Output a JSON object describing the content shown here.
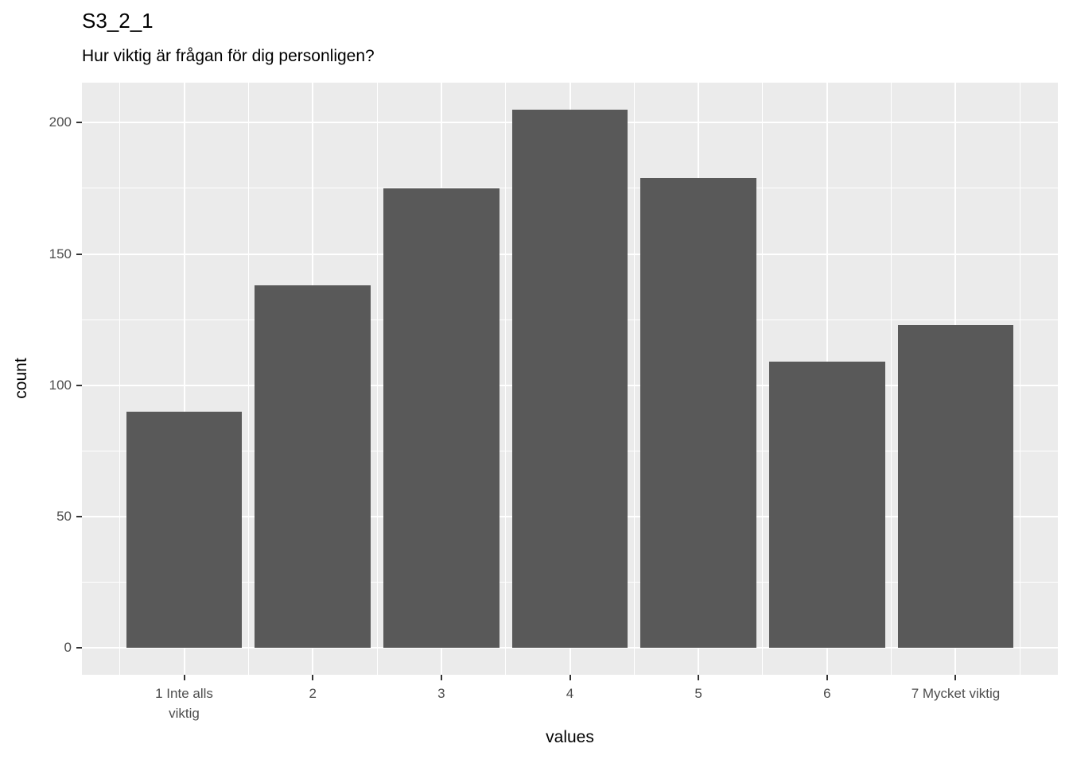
{
  "chart_data": {
    "type": "bar",
    "title": "S3_2_1",
    "subtitle": "Hur viktig är frågan för dig personligen?",
    "xlabel": "values",
    "ylabel": "count",
    "x": [
      1,
      2,
      3,
      4,
      5,
      6,
      7
    ],
    "categories": [
      "1 Inte alls\nviktig",
      "2",
      "3",
      "4",
      "5",
      "6",
      "7 Mycket viktig"
    ],
    "values": [
      90,
      138,
      175,
      205,
      179,
      109,
      123
    ],
    "yticks": [
      0,
      50,
      100,
      150,
      200
    ],
    "yticks_minor": [
      25,
      75,
      125,
      175
    ],
    "xticks_minor": [
      0.5,
      1.5,
      2.5,
      3.5,
      4.5,
      5.5,
      6.5,
      7.5
    ],
    "ylim": [
      -10.25,
      215.25
    ],
    "xlim": [
      0.205,
      7.795
    ],
    "bar_width": 0.9,
    "legend": "none",
    "grid": "on",
    "colors": {
      "bar_fill": "#595959",
      "panel_bg": "#EBEBEB",
      "grid": "#FFFFFF",
      "tick_mark": "#333333",
      "tick_label": "#4D4D4D",
      "title_text": "#000000"
    }
  }
}
